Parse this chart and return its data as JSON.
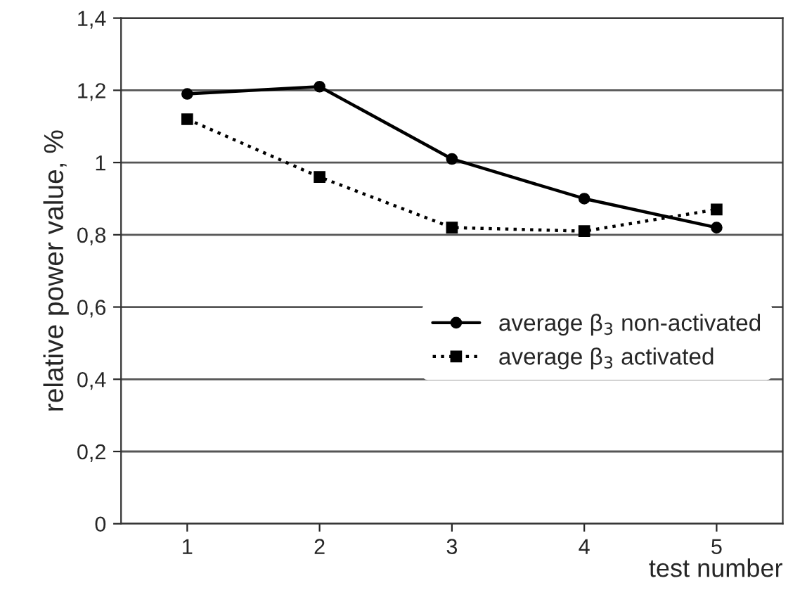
{
  "chart_data": {
    "type": "line",
    "xlabel": "test number",
    "ylabel": "relative power value, %",
    "categories": [
      "1",
      "2",
      "3",
      "4",
      "5"
    ],
    "series": [
      {
        "name": "average β$_{3}$ non-activated",
        "color": "#000000",
        "marker": "circle",
        "line_style": "solid",
        "values": [
          1.19,
          1.21,
          1.01,
          0.9,
          0.82
        ]
      },
      {
        "name": "average β$_{3}$ activated",
        "color": "#000000",
        "marker": "square",
        "line_style": "dotted",
        "values": [
          1.12,
          0.96,
          0.82,
          0.81,
          0.87
        ]
      }
    ],
    "ylim": [
      0,
      1.4
    ],
    "yticks": [
      0,
      {
        "value": 0.2,
        "label": "0,2"
      },
      {
        "value": 0.4,
        "label": "0,4"
      },
      {
        "value": 0.6,
        "label": "0,6"
      },
      {
        "value": 0.8,
        "label": "0,8"
      },
      1,
      {
        "value": 1.2,
        "label": "1,2"
      },
      {
        "value": 1.4,
        "label": "1,4"
      }
    ],
    "grid": "y",
    "legend": "right"
  }
}
